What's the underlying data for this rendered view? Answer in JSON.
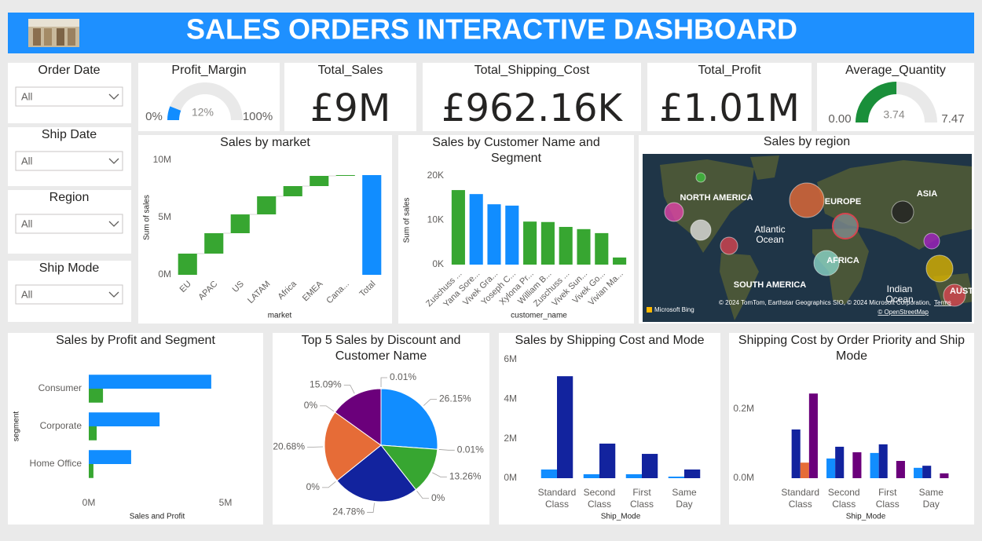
{
  "header": {
    "title": "SALES ORDERS INTERACTIVE DASHBOARD"
  },
  "slicers": [
    {
      "label": "Order Date",
      "value": "All"
    },
    {
      "label": "Ship Date",
      "value": "All"
    },
    {
      "label": "Region",
      "value": "All"
    },
    {
      "label": "Ship Mode",
      "value": "All"
    }
  ],
  "cards": [
    {
      "title": "Total_Sales",
      "value": "£9M"
    },
    {
      "title": "Total_Shipping_Cost",
      "value": "£962.16K"
    },
    {
      "title": "Total_Profit",
      "value": "£1.01M"
    }
  ],
  "map": {
    "title": "Sales by region",
    "labels": [
      "NORTH AMERICA",
      "EUROPE",
      "ASIA",
      "Atlantic Ocean",
      "AFRICA",
      "SOUTH AMERICA",
      "Indian Ocean",
      "AUST"
    ],
    "logo": "Microsoft Bing",
    "attribution": "© 2024 TomTom, Earthstar Geographics SIO, © 2024 Microsoft Corporation,",
    "terms": "Terms",
    "osm": "© OpenStreetMap"
  },
  "chart_data": [
    {
      "type": "gauge",
      "title": "Profit_Margin",
      "value": 12,
      "value_label": "12%",
      "min": {
        "value": 0,
        "label": "0%"
      },
      "max": {
        "value": 100,
        "label": "100%"
      },
      "color": "#118dff"
    },
    {
      "type": "gauge",
      "title": "Average_Quantity",
      "value": 3.74,
      "min": {
        "value": 0,
        "label": "0.00"
      },
      "max": 7.47,
      "color": "#1a8f3a"
    },
    {
      "type": "waterfall",
      "title": "Sales by market",
      "xlabel": "market",
      "ylabel": "Sum of sales",
      "categories": [
        "EU",
        "APAC",
        "US",
        "LATAM",
        "Africa",
        "EMEA",
        "Cana...",
        "Total"
      ],
      "values": [
        1850000,
        1780000,
        1640000,
        1580000,
        890000,
        890000,
        70000,
        8700000
      ],
      "increase_color": "#37a631",
      "total_color": "#118dff",
      "rotate_x_labels": true,
      "ylim": [
        0,
        10000000
      ],
      "yticks": [
        {
          "value": 0,
          "label": "0M"
        },
        {
          "value": 5000000,
          "label": "5M"
        },
        {
          "value": 10000000,
          "label": "10M"
        }
      ]
    },
    {
      "type": "bar",
      "title": "Sales by Customer Name and Segment",
      "xlabel": "customer_name",
      "ylabel": "Sum of sales",
      "categories": [
        "Zuschuss ...",
        "Yana Sore...",
        "Vivek Gra...",
        "Yoseph C...",
        "Xylona Pr...",
        "William B...",
        "Zuschuss ...",
        "Vivek Sun...",
        "Vivek Go...",
        "Vivian Ma..."
      ],
      "values": [
        16800,
        15900,
        13600,
        13300,
        9700,
        9600,
        8500,
        8000,
        7100,
        1600
      ],
      "colors": [
        "#37a631",
        "#118dff",
        "#118dff",
        "#118dff",
        "#37a631",
        "#37a631",
        "#37a631",
        "#37a631",
        "#37a631",
        "#37a631"
      ],
      "rotate_x_labels": true,
      "ylim": [
        0,
        20000
      ],
      "yticks": [
        {
          "value": 0,
          "label": "0K"
        },
        {
          "value": 10000,
          "label": "10K"
        },
        {
          "value": 20000,
          "label": "20K"
        }
      ]
    },
    {
      "type": "hbar",
      "title": "Sales by Profit and Segment",
      "xlabel": "Sales and Profit",
      "ylabel": "segment",
      "categories": [
        "Consumer",
        "Corporate",
        "Home Office"
      ],
      "series": [
        {
          "color": "#118dff",
          "values": [
            4480000,
            2590000,
            1550000
          ]
        },
        {
          "color": "#37a631",
          "values": [
            520000,
            290000,
            170000
          ]
        }
      ],
      "xlim": [
        0,
        5000000
      ],
      "xticks": [
        {
          "value": 0,
          "label": "0M"
        },
        {
          "value": 5000000,
          "label": "5M"
        }
      ]
    },
    {
      "type": "pie",
      "title": "Top 5 Sales by Discount and Customer Name",
      "values": [
        0.01,
        26.15,
        0.01,
        13.26,
        0,
        24.78,
        0,
        20.68,
        0,
        15.09
      ],
      "value_labels": [
        "0.01%",
        "26.15%",
        "0.01%",
        "13.26%",
        "0%",
        "24.78%",
        "0%",
        "20.68%",
        "0%",
        "15.09%"
      ],
      "colors": [
        "#e044a7",
        "#118dff",
        "#744ec2",
        "#37a631",
        "#d9b300",
        "#12239e",
        "#d64550",
        "#e66c37",
        "#197278",
        "#6b007b"
      ]
    },
    {
      "type": "bar",
      "title": "Sales by Shipping Cost and Mode",
      "xlabel": "Ship_Mode",
      "categories": [
        "Standard Class",
        "Second Class",
        "First Class",
        "Same Day"
      ],
      "series": [
        {
          "color": "#118dff",
          "values": [
            440000,
            200000,
            200000,
            80000
          ]
        },
        {
          "color": "#12239e",
          "values": [
            5160000,
            1750000,
            1230000,
            440000
          ]
        }
      ],
      "ylim": [
        0,
        6000000
      ],
      "yticks": [
        {
          "value": 0,
          "label": "0M"
        },
        {
          "value": 2000000,
          "label": "2M"
        },
        {
          "value": 4000000,
          "label": "4M"
        },
        {
          "value": 6000000,
          "label": "6M"
        }
      ]
    },
    {
      "type": "bar",
      "title": "Shipping Cost by Order Priority and Ship Mode",
      "xlabel": "Ship_Mode",
      "categories": [
        "Standard Class",
        "Second Class",
        "First Class",
        "Same Day"
      ],
      "series": [
        {
          "color": "#118dff",
          "values": [
            null,
            57000,
            73000,
            30000
          ]
        },
        {
          "color": "#12239e",
          "values": [
            141000,
            91000,
            98000,
            36000
          ]
        },
        {
          "color": "#e66c37",
          "values": [
            45000,
            null,
            null,
            null
          ]
        },
        {
          "color": "#6b007b",
          "values": [
            245000,
            75000,
            50000,
            14000
          ]
        }
      ],
      "ylim": [
        0,
        300000
      ],
      "yticks": [
        {
          "value": 0,
          "label": "0.0M"
        },
        {
          "value": 200000,
          "label": "0.2M"
        }
      ]
    }
  ]
}
